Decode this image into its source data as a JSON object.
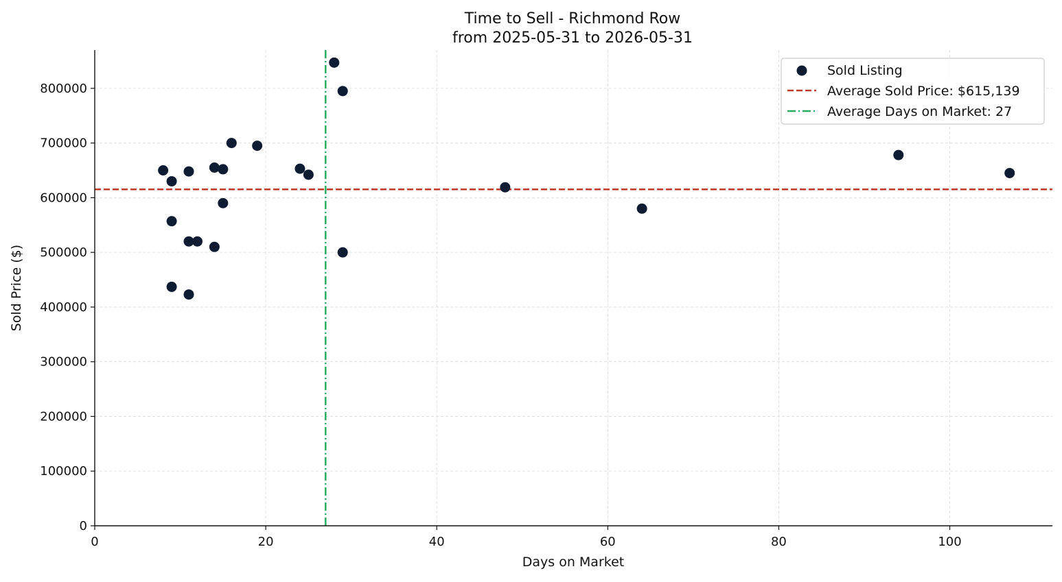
{
  "chart_data": {
    "type": "scatter",
    "title": "Time to Sell - Richmond Row",
    "subtitle": "from 2025-05-31 to 2026-05-31",
    "xlabel": "Days on Market",
    "ylabel": "Sold Price ($)",
    "xlim": [
      0,
      112
    ],
    "ylim": [
      0,
      870000
    ],
    "xticks": [
      0,
      20,
      40,
      60,
      80,
      100
    ],
    "yticks": [
      0,
      100000,
      200000,
      300000,
      400000,
      500000,
      600000,
      700000,
      800000
    ],
    "grid": true,
    "legend_position": "top-right",
    "series": [
      {
        "name": "Sold Listing",
        "color": "#0d1b33",
        "points": [
          {
            "x": 8,
            "y": 650000
          },
          {
            "x": 9,
            "y": 630000
          },
          {
            "x": 9,
            "y": 557000
          },
          {
            "x": 9,
            "y": 437000
          },
          {
            "x": 11,
            "y": 648000
          },
          {
            "x": 11,
            "y": 520000
          },
          {
            "x": 11,
            "y": 423000
          },
          {
            "x": 12,
            "y": 520000
          },
          {
            "x": 14,
            "y": 655000
          },
          {
            "x": 14,
            "y": 510000
          },
          {
            "x": 15,
            "y": 652000
          },
          {
            "x": 15,
            "y": 590000
          },
          {
            "x": 16,
            "y": 700000
          },
          {
            "x": 19,
            "y": 695000
          },
          {
            "x": 24,
            "y": 653000
          },
          {
            "x": 25,
            "y": 642000
          },
          {
            "x": 28,
            "y": 847000
          },
          {
            "x": 29,
            "y": 795000
          },
          {
            "x": 29,
            "y": 500000
          },
          {
            "x": 48,
            "y": 619000
          },
          {
            "x": 64,
            "y": 580000
          },
          {
            "x": 94,
            "y": 678000
          },
          {
            "x": 107,
            "y": 645000
          }
        ]
      }
    ],
    "reference_lines": [
      {
        "orientation": "horizontal",
        "value": 615139,
        "label": "Average Sold Price: $615,139",
        "color": "#c0392b",
        "style": "dashed"
      },
      {
        "orientation": "vertical",
        "value": 27,
        "label": "Average Days on Market: 27",
        "color": "#27ae60",
        "style": "dashdot"
      }
    ]
  }
}
